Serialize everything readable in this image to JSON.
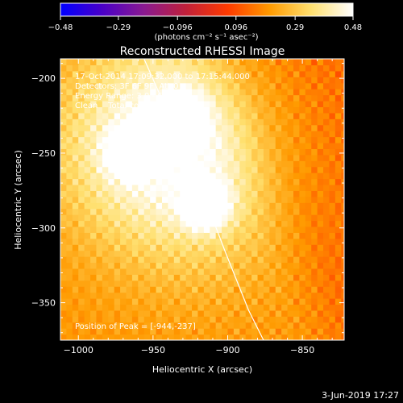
{
  "chart_data": {
    "type": "heatmap",
    "title": "Reconstructed RHESSI Image",
    "xlabel": "Heliocentric X (arcsec)",
    "ylabel": "Heliocentric Y (arcsec)",
    "xlim": [
      -1012,
      -822
    ],
    "ylim": [
      -375,
      -187
    ],
    "xticks": [
      -1000,
      -950,
      -900,
      -850
    ],
    "yticks": [
      -200,
      -250,
      -300,
      -350
    ],
    "xtick_labels": [
      "−1000",
      "−950",
      "−900",
      "−850"
    ],
    "ytick_labels": [
      "−200",
      "−250",
      "−300",
      "−350"
    ],
    "colorbar": {
      "min": -0.48,
      "max": 0.48,
      "ticks": [
        -0.48,
        -0.29,
        -0.096,
        0.096,
        0.29,
        0.48
      ],
      "tick_labels": [
        "−0.48",
        "−0.29",
        "−0.096",
        "0.096",
        "0.29",
        "0.48"
      ],
      "unit_label": "(photons cm⁻² s⁻¹ asec⁻²)",
      "colors": [
        "#0000ff",
        "#4a00c8",
        "#8a1a90",
        "#c0203a",
        "#ff3a00",
        "#ff9a00",
        "#ffe070",
        "#ffffff"
      ]
    },
    "info_lines": [
      "17-Oct-2014 17:09:32.000 to 17:15:44.000",
      "Detectors: 3F 6F 9F, Att 0",
      "Energy Range: 3.0 - 6.0 keV",
      "Clean    Total counts: 2.45E+04"
    ],
    "peak_label": "Position of Peak = [-944,-237]",
    "sources": [
      {
        "x": -944,
        "y": -236,
        "peak": 0.48
      },
      {
        "x": -915,
        "y": -285,
        "peak": 0.44
      },
      {
        "x": -967,
        "y": -250,
        "peak": 0.3
      },
      {
        "x": -930,
        "y": -224,
        "peak": 0.28
      }
    ],
    "limb": [
      [
        -956,
        -187
      ],
      [
        -937,
        -230
      ],
      [
        -918,
        -273
      ],
      [
        -902,
        -315
      ],
      [
        -886,
        -355
      ],
      [
        -876,
        -375
      ]
    ],
    "background_level": 0.2,
    "timestamp": "3-Jun-2019 17:27"
  }
}
